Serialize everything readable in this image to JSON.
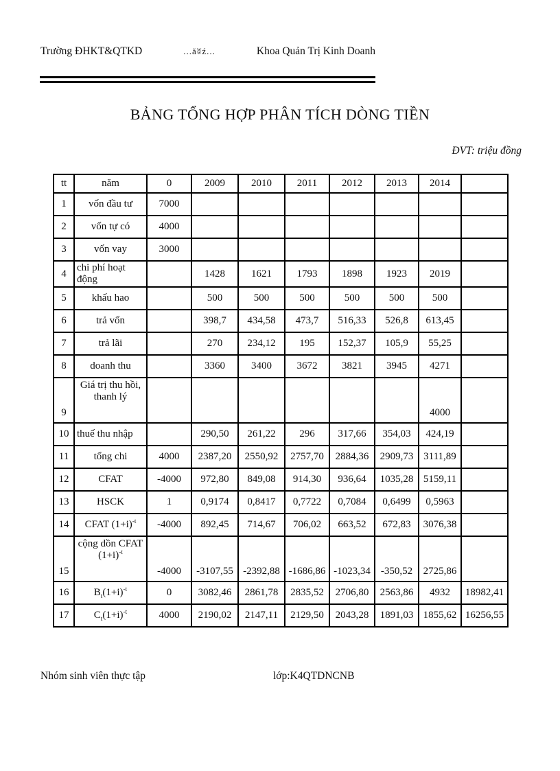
{
  "header": {
    "school": "Trường ĐHKT&QTKD",
    "ornament": "...ăʬź...",
    "faculty": "Khoa Quản Trị Kinh Doanh"
  },
  "title": "BẢNG TỔNG HỢP PHÂN TÍCH DÒNG TIỀN",
  "unit_note": "ĐVT: triệu đồng",
  "table": {
    "columns": [
      "tt",
      "năm",
      "0",
      "2009",
      "2010",
      "2011",
      "2012",
      "2013",
      "2014",
      ""
    ],
    "rows": [
      {
        "tt": "1",
        "label": "vốn đầu tư",
        "align": "center",
        "tall": false,
        "values": [
          "7000",
          "",
          "",
          "",
          "",
          "",
          "",
          ""
        ]
      },
      {
        "tt": "2",
        "label": "vốn tự có",
        "align": "center",
        "tall": false,
        "values": [
          "4000",
          "",
          "",
          "",
          "",
          "",
          "",
          ""
        ]
      },
      {
        "tt": "3",
        "label": "vốn vay",
        "align": "center",
        "tall": false,
        "values": [
          "3000",
          "",
          "",
          "",
          "",
          "",
          "",
          ""
        ]
      },
      {
        "tt": "4",
        "label": "chi phí hoạt động",
        "align": "left",
        "tall": false,
        "values": [
          "",
          "1428",
          "1621",
          "1793",
          "1898",
          "1923",
          "2019",
          ""
        ]
      },
      {
        "tt": "5",
        "label": "khấu hao",
        "align": "center",
        "tall": false,
        "values": [
          "",
          "500",
          "500",
          "500",
          "500",
          "500",
          "500",
          ""
        ]
      },
      {
        "tt": "6",
        "label": "trả vốn",
        "align": "center",
        "tall": false,
        "values": [
          "",
          "398,7",
          "434,58",
          "473,7",
          "516,33",
          "526,8",
          "613,45",
          ""
        ]
      },
      {
        "tt": "7",
        "label": "trả lãi",
        "align": "center",
        "tall": false,
        "values": [
          "",
          "270",
          "234,12",
          "195",
          "152,37",
          "105,9",
          "55,25",
          ""
        ]
      },
      {
        "tt": "8",
        "label": "doanh thu",
        "align": "center",
        "tall": false,
        "values": [
          "",
          "3360",
          "3400",
          "3672",
          "3821",
          "3945",
          "4271",
          ""
        ]
      },
      {
        "tt": "9",
        "label": "Giá trị thu hồi,\nthanh lý",
        "align": "center",
        "tall": true,
        "values": [
          "",
          "",
          "",
          "",
          "",
          "",
          "4000",
          ""
        ]
      },
      {
        "tt": "10",
        "label": "thuế thu nhập",
        "align": "left",
        "tall": false,
        "values": [
          "",
          "290,50",
          "261,22",
          "296",
          "317,66",
          "354,03",
          "424,19",
          ""
        ]
      },
      {
        "tt": "11",
        "label": "tổng chi",
        "align": "center",
        "tall": false,
        "values": [
          "4000",
          "2387,20",
          "2550,92",
          "2757,70",
          "2884,36",
          "2909,73",
          "3111,89",
          ""
        ]
      },
      {
        "tt": "12",
        "label": "CFAT",
        "align": "center",
        "tall": false,
        "values": [
          "-4000",
          "972,80",
          "849,08",
          "914,30",
          "936,64",
          "1035,28",
          "5159,11",
          ""
        ]
      },
      {
        "tt": "13",
        "label": "HSCK",
        "align": "center",
        "tall": false,
        "values": [
          "1",
          "0,9174",
          "0,8417",
          "0,7722",
          "0,7084",
          "0,6499",
          "0,5963",
          ""
        ]
      },
      {
        "tt": "14",
        "label": "CFAT (1+i)^{-t}",
        "align": "center",
        "tall": false,
        "values": [
          "-4000",
          "892,45",
          "714,67",
          "706,02",
          "663,52",
          "672,83",
          "3076,38",
          ""
        ]
      },
      {
        "tt": "15",
        "label": "cộng dồn CFAT\n(1+i)^{-t}",
        "align": "center",
        "tall": true,
        "values": [
          "-4000",
          "-3107,55",
          "-2392,88",
          "-1686,86",
          "-1023,34",
          "-350,52",
          "2725,86",
          ""
        ]
      },
      {
        "tt": "16",
        "label": "B_{t}(1+i)^{-t}",
        "align": "center",
        "tall": false,
        "values": [
          "0",
          "3082,46",
          "2861,78",
          "2835,52",
          "2706,80",
          "2563,86",
          "4932",
          "18982,41"
        ]
      },
      {
        "tt": "17",
        "label": "C_{t}(1+i)^{-t}",
        "align": "center",
        "tall": false,
        "values": [
          "4000",
          "2190,02",
          "2147,11",
          "2129,50",
          "2043,28",
          "1891,03",
          "1855,62",
          "16256,55"
        ]
      }
    ]
  },
  "footer": {
    "group": "Nhóm sinh viên thực tập",
    "class_label": "lớp:K4QTDNCNB"
  }
}
